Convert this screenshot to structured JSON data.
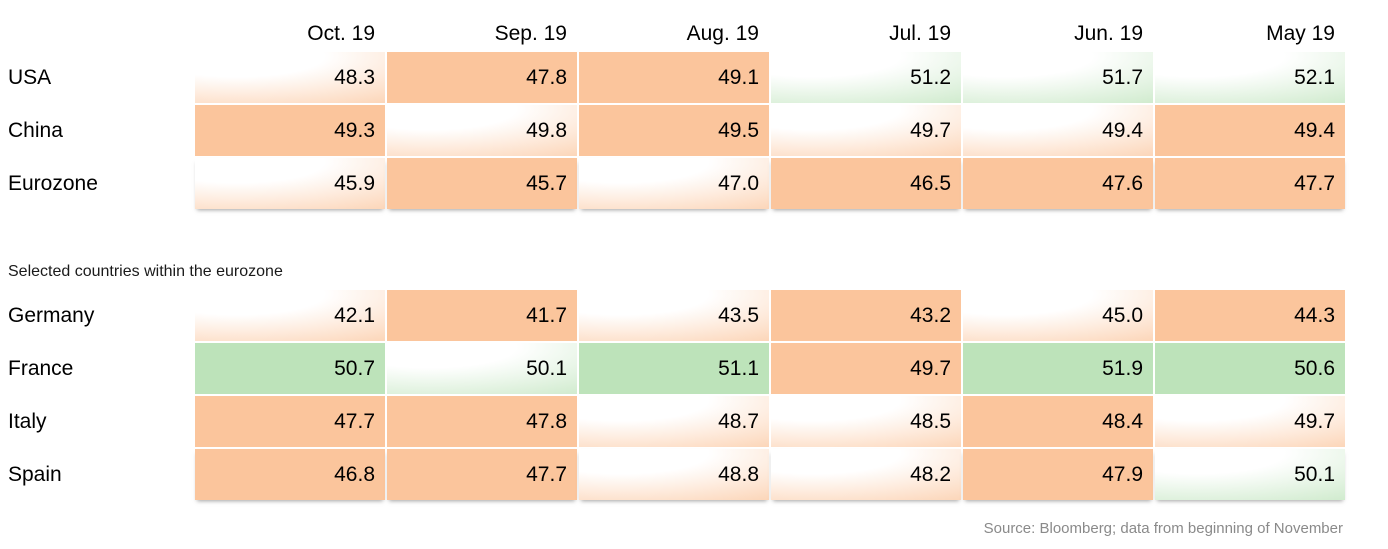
{
  "page": {
    "columns": [
      "Oct. 19",
      "Sep. 19",
      "Aug. 19",
      "Jul. 19",
      "Jun. 19",
      "May 19"
    ],
    "section2_title": "Selected countries within the eurozone",
    "source_note": "Source: Bloomberg; data from beginning of November",
    "colors": {
      "below_50_orange": "#FBC59C",
      "above_50_green": "#BDE3BA"
    }
  },
  "table_world": {
    "rows": [
      {
        "label": "USA",
        "cells": [
          {
            "value": "48.3",
            "fill": "orange-fade"
          },
          {
            "value": "47.8",
            "fill": "orange"
          },
          {
            "value": "49.1",
            "fill": "orange"
          },
          {
            "value": "51.2",
            "fill": "green-fade"
          },
          {
            "value": "51.7",
            "fill": "green-fade"
          },
          {
            "value": "52.1",
            "fill": "green-fade"
          }
        ]
      },
      {
        "label": "China",
        "cells": [
          {
            "value": "49.3",
            "fill": "orange"
          },
          {
            "value": "49.8",
            "fill": "orange-fade"
          },
          {
            "value": "49.5",
            "fill": "orange"
          },
          {
            "value": "49.7",
            "fill": "orange-fade"
          },
          {
            "value": "49.4",
            "fill": "orange-fade"
          },
          {
            "value": "49.4",
            "fill": "orange"
          }
        ]
      },
      {
        "label": "Eurozone",
        "cells": [
          {
            "value": "45.9",
            "fill": "orange-fade"
          },
          {
            "value": "45.7",
            "fill": "orange"
          },
          {
            "value": "47.0",
            "fill": "orange-fade"
          },
          {
            "value": "46.5",
            "fill": "orange"
          },
          {
            "value": "47.6",
            "fill": "orange"
          },
          {
            "value": "47.7",
            "fill": "orange"
          }
        ]
      }
    ]
  },
  "table_eurozone": {
    "rows": [
      {
        "label": "Germany",
        "cells": [
          {
            "value": "42.1",
            "fill": "orange-fade"
          },
          {
            "value": "41.7",
            "fill": "orange"
          },
          {
            "value": "43.5",
            "fill": "orange-fade"
          },
          {
            "value": "43.2",
            "fill": "orange"
          },
          {
            "value": "45.0",
            "fill": "orange-fade"
          },
          {
            "value": "44.3",
            "fill": "orange"
          }
        ]
      },
      {
        "label": "France",
        "cells": [
          {
            "value": "50.7",
            "fill": "green"
          },
          {
            "value": "50.1",
            "fill": "green-fade"
          },
          {
            "value": "51.1",
            "fill": "green"
          },
          {
            "value": "49.7",
            "fill": "orange"
          },
          {
            "value": "51.9",
            "fill": "green"
          },
          {
            "value": "50.6",
            "fill": "green"
          }
        ]
      },
      {
        "label": "Italy",
        "cells": [
          {
            "value": "47.7",
            "fill": "orange"
          },
          {
            "value": "47.8",
            "fill": "orange"
          },
          {
            "value": "48.7",
            "fill": "orange-fade"
          },
          {
            "value": "48.5",
            "fill": "orange-fade"
          },
          {
            "value": "48.4",
            "fill": "orange"
          },
          {
            "value": "49.7",
            "fill": "orange-fade"
          }
        ]
      },
      {
        "label": "Spain",
        "cells": [
          {
            "value": "46.8",
            "fill": "orange"
          },
          {
            "value": "47.7",
            "fill": "orange"
          },
          {
            "value": "48.8",
            "fill": "orange-fade"
          },
          {
            "value": "48.2",
            "fill": "orange-fade"
          },
          {
            "value": "47.9",
            "fill": "orange"
          },
          {
            "value": "50.1",
            "fill": "green-fade"
          }
        ]
      }
    ]
  },
  "chart_data": {
    "type": "heatmap",
    "title": "",
    "columns": [
      "Oct. 19",
      "Sep. 19",
      "Aug. 19",
      "Jul. 19",
      "Jun. 19",
      "May 19"
    ],
    "groups": [
      {
        "name": "",
        "rows": [
          {
            "label": "USA",
            "values": [
              48.3,
              47.8,
              49.1,
              51.2,
              51.7,
              52.1
            ]
          },
          {
            "label": "China",
            "values": [
              49.3,
              49.8,
              49.5,
              49.7,
              49.4,
              49.4
            ]
          },
          {
            "label": "Eurozone",
            "values": [
              45.9,
              45.7,
              47.0,
              46.5,
              47.6,
              47.7
            ]
          }
        ]
      },
      {
        "name": "Selected countries within the eurozone",
        "rows": [
          {
            "label": "Germany",
            "values": [
              42.1,
              41.7,
              43.5,
              43.2,
              45.0,
              44.3
            ]
          },
          {
            "label": "France",
            "values": [
              50.7,
              50.1,
              51.1,
              49.7,
              51.9,
              50.6
            ]
          },
          {
            "label": "Italy",
            "values": [
              47.7,
              47.8,
              48.7,
              48.5,
              48.4,
              49.7
            ]
          },
          {
            "label": "Spain",
            "values": [
              46.8,
              47.7,
              48.8,
              48.2,
              47.9,
              50.1
            ]
          }
        ]
      }
    ],
    "color_coding": {
      "orange": "value below 50",
      "green": "value above 50"
    },
    "legend_position": "none",
    "source": "Source: Bloomberg; data from beginning of November"
  }
}
